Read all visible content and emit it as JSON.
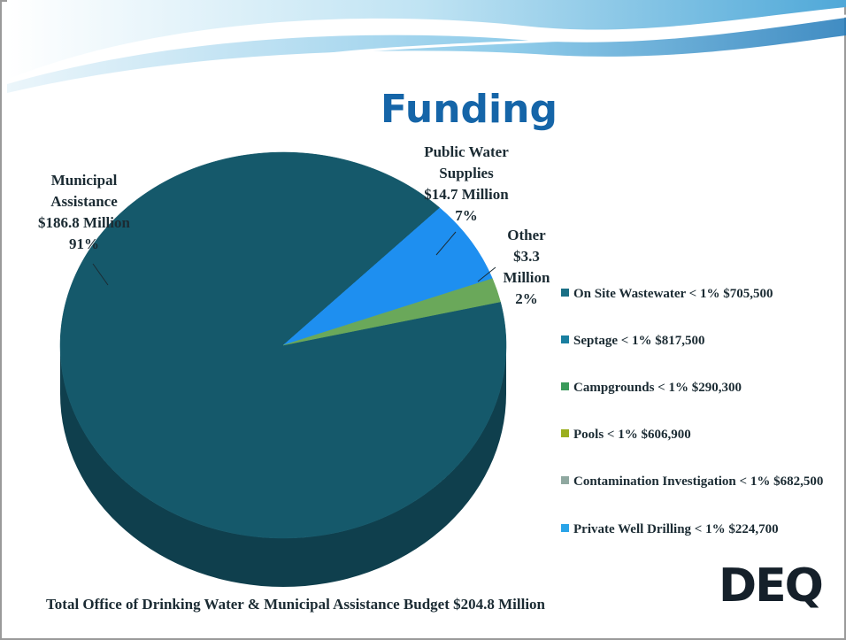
{
  "chart_data": {
    "type": "pie",
    "title": "Funding",
    "categories": [
      "Municipal Assistance",
      "Public Water Supplies",
      "Other"
    ],
    "amounts": [
      "$186.8 Million",
      "$14.7 Million",
      "$3.3 Million"
    ],
    "values": [
      91,
      7,
      2
    ],
    "value_labels": [
      "91%",
      "7%",
      "2%"
    ],
    "colors": [
      "#15596b",
      "#1e8ff0",
      "#6aa85a"
    ],
    "legend": {
      "entries": [
        "On Site Wastewater < 1% $705,500",
        "Septage < 1% $817,500",
        "Campgrounds < 1% $290,300",
        "Pools < 1% $606,900",
        "Contamination Investigation < 1% $682,500",
        "Private Well Drilling < 1% $224,700"
      ],
      "colors": [
        "#1a6f85",
        "#1a7fa0",
        "#3a9a5a",
        "#9aae1e",
        "#8fa8a0",
        "#2aa4e8"
      ]
    }
  },
  "footer": "Total Office of Drinking Water & Municipal Assistance Budget $204.8 Million",
  "logo": "DEQ"
}
